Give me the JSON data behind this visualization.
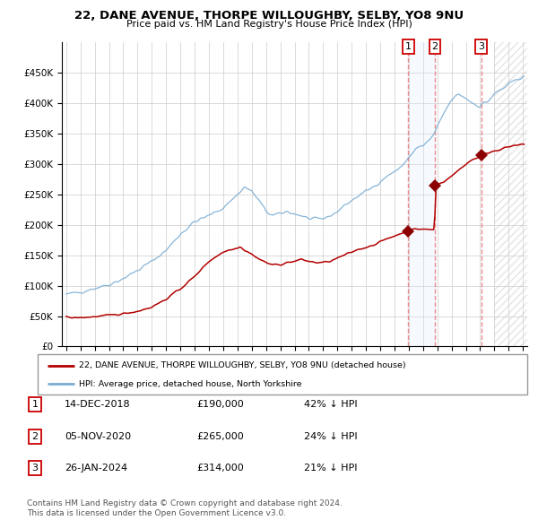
{
  "title": "22, DANE AVENUE, THORPE WILLOUGHBY, SELBY, YO8 9NU",
  "subtitle": "Price paid vs. HM Land Registry's House Price Index (HPI)",
  "legend_line1": "22, DANE AVENUE, THORPE WILLOUGHBY, SELBY, YO8 9NU (detached house)",
  "legend_line2": "HPI: Average price, detached house, North Yorkshire",
  "footer1": "Contains HM Land Registry data © Crown copyright and database right 2024.",
  "footer2": "This data is licensed under the Open Government Licence v3.0.",
  "transactions": [
    {
      "num": "1",
      "date": "14-DEC-2018",
      "price": "£190,000",
      "hpi": "42% ↓ HPI"
    },
    {
      "num": "2",
      "date": "05-NOV-2020",
      "price": "£265,000",
      "hpi": "24% ↓ HPI"
    },
    {
      "num": "3",
      "date": "26-JAN-2024",
      "price": "£314,000",
      "hpi": "21% ↓ HPI"
    }
  ],
  "hpi_color": "#7aadd4",
  "price_color": "#b30000",
  "marker_color": "#8b0000",
  "vline_color": "#e88080",
  "shade_color": "#ddeeff",
  "hatch_color": "#cccccc",
  "ylim": [
    0,
    500000
  ],
  "yticks": [
    0,
    50000,
    100000,
    150000,
    200000,
    250000,
    300000,
    350000,
    400000,
    450000
  ],
  "xlim_min": 1994.7,
  "xlim_max": 2027.3,
  "transaction_years": [
    2018.96,
    2020.84,
    2024.07
  ],
  "transaction_prices": [
    190000,
    265000,
    314000
  ],
  "vline1_x": 2018.96,
  "vline2_x": 2020.84,
  "vline3_x": 2024.07,
  "shade_x1": 2018.96,
  "shade_x2": 2020.84,
  "hatch_x1": 2025.0,
  "hatch_x2": 2027.3,
  "background_color": "#ffffff",
  "grid_color": "#cccccc"
}
